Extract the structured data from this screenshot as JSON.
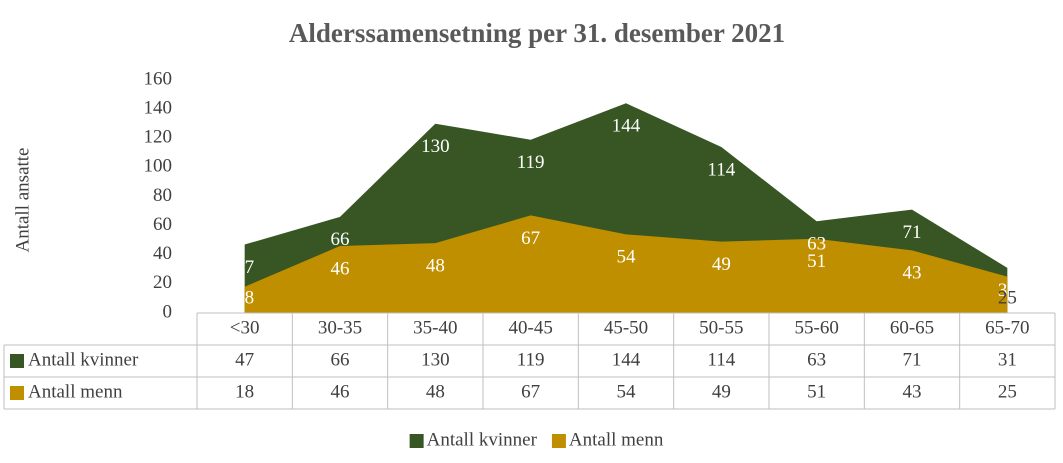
{
  "chart_data": {
    "type": "area",
    "title": "Alderssamensetning per 31. desember 2021",
    "ylabel": "Antall ansatte",
    "categories": [
      "<30",
      "30-35",
      "35-40",
      "40-45",
      "45-50",
      "50-55",
      "55-60",
      "60-65",
      "65-70"
    ],
    "series": [
      {
        "name": "Antall kvinner",
        "color": "#375623",
        "values": [
          47,
          66,
          130,
          119,
          144,
          114,
          63,
          71,
          31
        ]
      },
      {
        "name": "Antall menn",
        "color": "#bf8f00",
        "values": [
          18,
          46,
          48,
          67,
          54,
          49,
          51,
          43,
          25
        ]
      }
    ],
    "ylim": [
      0,
      160
    ],
    "yticks": [
      0,
      20,
      40,
      60,
      80,
      100,
      120,
      140,
      160
    ],
    "grid": false,
    "legend": "bottom",
    "data_table": true
  }
}
